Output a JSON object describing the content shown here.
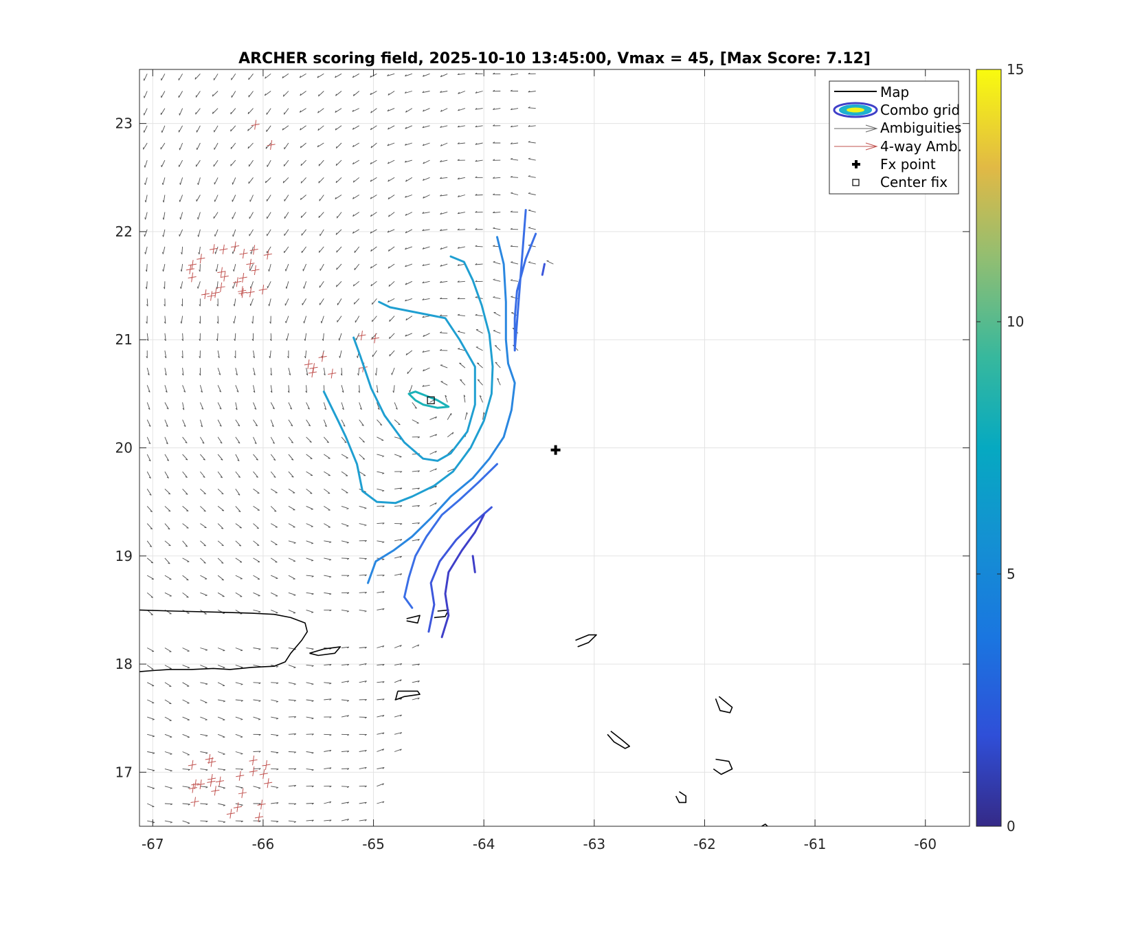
{
  "chart_data": {
    "type": "contour",
    "title": "ARCHER scoring field, 2025-10-10 13:45:00, Vmax = 45, [Max Score: 7.12]",
    "xlim": [
      -67.12,
      -59.6
    ],
    "ylim": [
      16.5,
      23.5
    ],
    "xticks": [
      -67,
      -66,
      -65,
      -64,
      -63,
      -62,
      -61,
      -60
    ],
    "yticks": [
      17,
      18,
      19,
      20,
      21,
      22,
      23
    ],
    "xtick_labels": [
      "-67",
      "-66",
      "-65",
      "-64",
      "-63",
      "-62",
      "-61",
      "-60"
    ],
    "ytick_labels": [
      "17",
      "18",
      "19",
      "20",
      "21",
      "22",
      "23"
    ],
    "grid": true,
    "colorbar": {
      "min": 0,
      "max": 15,
      "ticks": [
        0,
        5,
        10,
        15
      ],
      "tick_labels": [
        "0",
        "5",
        "10",
        "15"
      ],
      "colormap": "parula"
    },
    "legend": {
      "placement": "top-right",
      "entries": [
        {
          "label": "Map",
          "kind": "line",
          "color": "#000000"
        },
        {
          "label": "Combo grid",
          "kind": "contour"
        },
        {
          "label": "Ambiguities",
          "kind": "arrow",
          "color": "#555555"
        },
        {
          "label": "4-way Amb.",
          "kind": "arrow",
          "color": "#c0504d"
        },
        {
          "label": "Fx point",
          "kind": "plus",
          "color": "#000000"
        },
        {
          "label": "Center fix",
          "kind": "square",
          "color": "#000000"
        }
      ]
    },
    "fx_point": {
      "lon": -63.35,
      "lat": 19.98
    },
    "center_fix": {
      "lon": -64.48,
      "lat": 20.44
    },
    "storm_center_for_winds": {
      "lon": -64.5,
      "lat": 20.45
    },
    "contours": [
      {
        "level": 6.3,
        "color": "#1ab2b8",
        "points": [
          [
            -64.68,
            20.5
          ],
          [
            -64.62,
            20.52
          ],
          [
            -64.52,
            20.48
          ],
          [
            -64.42,
            20.44
          ],
          [
            -64.32,
            20.38
          ],
          [
            -64.42,
            20.37
          ],
          [
            -64.55,
            20.4
          ],
          [
            -64.62,
            20.44
          ],
          [
            -64.68,
            20.5
          ]
        ]
      },
      {
        "level": 5.6,
        "color": "#1f9fd1",
        "points": [
          [
            -64.95,
            21.35
          ],
          [
            -64.85,
            21.3
          ],
          [
            -64.6,
            21.25
          ],
          [
            -64.35,
            21.2
          ],
          [
            -64.22,
            21.0
          ],
          [
            -64.08,
            20.75
          ],
          [
            -64.08,
            20.4
          ],
          [
            -64.15,
            20.15
          ],
          [
            -64.3,
            19.95
          ],
          [
            -64.42,
            19.88
          ],
          [
            -64.55,
            19.9
          ],
          [
            -64.72,
            20.05
          ],
          [
            -64.9,
            20.3
          ],
          [
            -65.02,
            20.55
          ],
          [
            -65.12,
            20.85
          ],
          [
            -65.18,
            21.02
          ]
        ]
      },
      {
        "level": 5.6,
        "color": "#1f9fd1",
        "points": [
          [
            -64.3,
            21.77
          ],
          [
            -64.18,
            21.72
          ],
          [
            -64.1,
            21.55
          ],
          [
            -64.02,
            21.32
          ],
          [
            -63.95,
            21.05
          ],
          [
            -63.92,
            20.75
          ],
          [
            -63.93,
            20.5
          ],
          [
            -64.0,
            20.25
          ],
          [
            -64.12,
            20.0
          ],
          [
            -64.28,
            19.78
          ],
          [
            -64.45,
            19.65
          ],
          [
            -64.65,
            19.55
          ],
          [
            -64.8,
            19.49
          ],
          [
            -64.97,
            19.5
          ],
          [
            -65.1,
            19.6
          ],
          [
            -65.15,
            19.85
          ],
          [
            -65.25,
            20.1
          ],
          [
            -65.32,
            20.25
          ],
          [
            -65.45,
            20.52
          ]
        ]
      },
      {
        "level": 4.9,
        "color": "#2a87e0",
        "points": [
          [
            -63.88,
            21.95
          ],
          [
            -63.82,
            21.7
          ],
          [
            -63.8,
            21.35
          ],
          [
            -63.8,
            21.0
          ],
          [
            -63.78,
            20.78
          ],
          [
            -63.72,
            20.6
          ],
          [
            -63.75,
            20.35
          ],
          [
            -63.82,
            20.1
          ],
          [
            -63.95,
            19.9
          ],
          [
            -64.1,
            19.72
          ],
          [
            -64.3,
            19.55
          ],
          [
            -64.48,
            19.35
          ],
          [
            -64.65,
            19.18
          ],
          [
            -64.82,
            19.05
          ],
          [
            -64.98,
            18.95
          ],
          [
            -65.05,
            18.75
          ]
        ]
      },
      {
        "level": 4.2,
        "color": "#3a6ee6",
        "points": [
          [
            -63.53,
            21.98
          ],
          [
            -63.62,
            21.75
          ],
          [
            -63.7,
            21.45
          ],
          [
            -63.72,
            21.2
          ],
          [
            -63.72,
            20.9
          ],
          [
            -63.62,
            22.2
          ]
        ]
      },
      {
        "level": 4.2,
        "color": "#3a6ee6",
        "points": [
          [
            -63.88,
            19.85
          ],
          [
            -64.05,
            19.68
          ],
          [
            -64.22,
            19.52
          ],
          [
            -64.38,
            19.38
          ],
          [
            -64.52,
            19.18
          ],
          [
            -64.62,
            19.0
          ],
          [
            -64.68,
            18.8
          ],
          [
            -64.72,
            18.62
          ],
          [
            -64.65,
            18.52
          ]
        ]
      },
      {
        "level": 3.5,
        "color": "#3d57dc",
        "points": [
          [
            -63.93,
            19.45
          ],
          [
            -64.1,
            19.3
          ],
          [
            -64.25,
            19.15
          ],
          [
            -64.4,
            18.95
          ],
          [
            -64.48,
            18.75
          ],
          [
            -64.45,
            18.55
          ],
          [
            -64.5,
            18.3
          ]
        ]
      },
      {
        "level": 2.8,
        "color": "#3f3fc8",
        "points": [
          [
            -64.0,
            19.38
          ],
          [
            -64.08,
            19.22
          ],
          [
            -64.2,
            19.05
          ],
          [
            -64.32,
            18.85
          ],
          [
            -64.35,
            18.65
          ],
          [
            -64.32,
            18.45
          ],
          [
            -64.38,
            18.25
          ]
        ]
      },
      {
        "level": 3.5,
        "color": "#3d57dc",
        "points": [
          [
            -63.45,
            21.7
          ],
          [
            -63.47,
            21.6
          ]
        ]
      },
      {
        "level": 2.8,
        "color": "#3f3fc8",
        "points": [
          [
            -64.1,
            19.0
          ],
          [
            -64.08,
            18.85
          ]
        ]
      }
    ],
    "map_polygons": [
      [
        [
          -67.12,
          18.5
        ],
        [
          -66.8,
          18.49
        ],
        [
          -66.4,
          18.48
        ],
        [
          -66.1,
          18.47
        ],
        [
          -65.9,
          18.46
        ],
        [
          -65.75,
          18.43
        ],
        [
          -65.62,
          18.38
        ],
        [
          -65.6,
          18.3
        ],
        [
          -65.65,
          18.22
        ],
        [
          -65.75,
          18.1
        ],
        [
          -65.8,
          18.02
        ],
        [
          -65.9,
          17.98
        ],
        [
          -66.1,
          17.97
        ],
        [
          -66.3,
          17.95
        ],
        [
          -66.45,
          17.96
        ],
        [
          -66.65,
          17.95
        ],
        [
          -66.85,
          17.95
        ],
        [
          -67.0,
          17.94
        ],
        [
          -67.12,
          17.93
        ]
      ],
      [
        [
          -65.58,
          18.1
        ],
        [
          -65.45,
          18.14
        ],
        [
          -65.3,
          18.16
        ],
        [
          -65.35,
          18.1
        ],
        [
          -65.5,
          18.08
        ],
        [
          -65.58,
          18.1
        ]
      ],
      [
        [
          -64.78,
          17.75
        ],
        [
          -64.6,
          17.75
        ],
        [
          -64.58,
          17.72
        ],
        [
          -64.72,
          17.7
        ],
        [
          -64.8,
          17.67
        ],
        [
          -64.78,
          17.75
        ]
      ],
      [
        [
          -64.7,
          18.42
        ],
        [
          -64.58,
          18.45
        ],
        [
          -64.6,
          18.38
        ],
        [
          -64.7,
          18.4
        ]
      ],
      [
        [
          -64.42,
          18.49
        ],
        [
          -64.32,
          18.5
        ],
        [
          -64.35,
          18.44
        ],
        [
          -64.45,
          18.43
        ]
      ],
      [
        [
          -63.17,
          18.22
        ],
        [
          -63.05,
          18.27
        ],
        [
          -62.98,
          18.27
        ],
        [
          -63.05,
          18.2
        ],
        [
          -63.15,
          18.16
        ]
      ],
      [
        [
          -61.87,
          17.7
        ],
        [
          -61.75,
          17.6
        ],
        [
          -61.77,
          17.55
        ],
        [
          -61.86,
          17.57
        ],
        [
          -61.9,
          17.68
        ]
      ],
      [
        [
          -62.85,
          17.38
        ],
        [
          -62.75,
          17.3
        ],
        [
          -62.68,
          17.24
        ],
        [
          -62.72,
          17.22
        ],
        [
          -62.82,
          17.28
        ],
        [
          -62.88,
          17.35
        ]
      ],
      [
        [
          -61.9,
          17.12
        ],
        [
          -61.78,
          17.1
        ],
        [
          -61.75,
          17.03
        ],
        [
          -61.85,
          16.98
        ],
        [
          -61.92,
          17.03
        ]
      ],
      [
        [
          -62.23,
          16.82
        ],
        [
          -62.17,
          16.78
        ],
        [
          -62.17,
          16.72
        ],
        [
          -62.23,
          16.72
        ],
        [
          -62.26,
          16.78
        ]
      ],
      [
        [
          -61.5,
          16.49
        ],
        [
          -61.45,
          16.52
        ],
        [
          -61.42,
          16.49
        ]
      ]
    ],
    "ambiguity_regions": [
      {
        "name": "north",
        "lon_min": -67.1,
        "lon_max": -63.35,
        "lat_min": 18.45,
        "lat_max": 23.5
      },
      {
        "name": "south",
        "lon_min": -67.1,
        "lon_max": -64.65,
        "lat_min": 16.5,
        "lat_max": 18.3
      }
    ],
    "four_way_clusters": [
      {
        "lon": -66.3,
        "lat": 21.6,
        "count": 24
      },
      {
        "lon": -65.3,
        "lat": 20.95,
        "count": 8
      },
      {
        "lon": -65.95,
        "lat": 22.85,
        "count": 2
      },
      {
        "lon": -66.3,
        "lat": 16.85,
        "count": 22
      }
    ]
  }
}
